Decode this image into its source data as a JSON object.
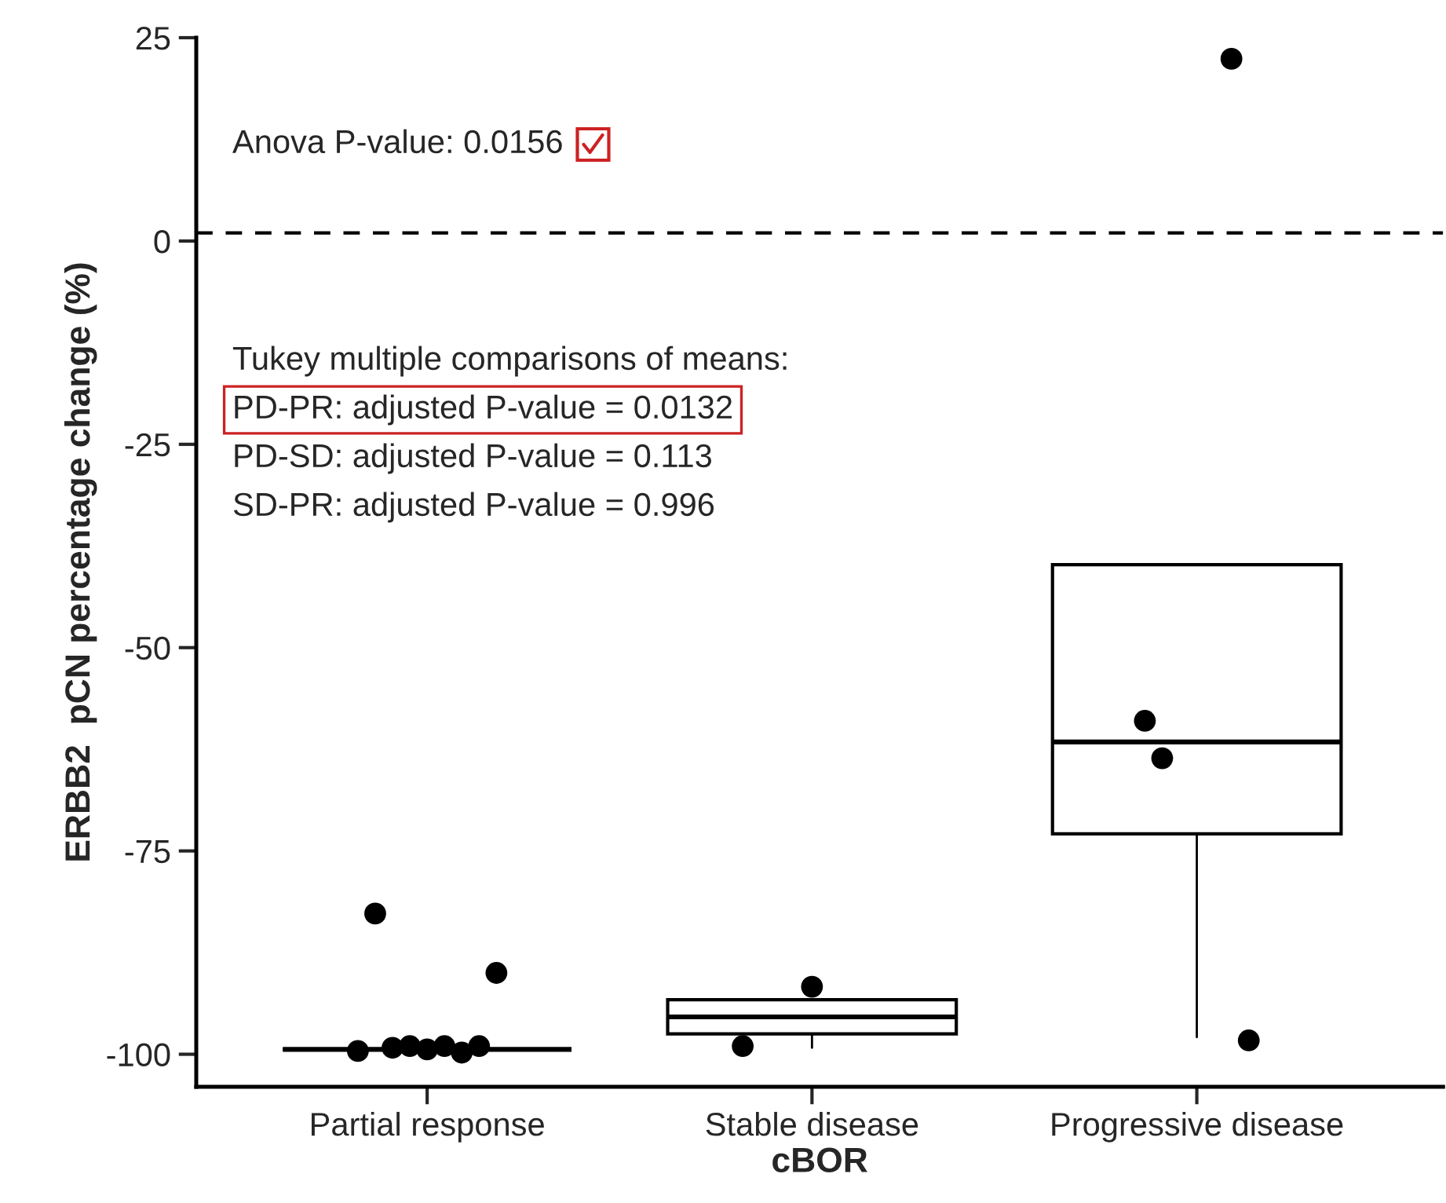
{
  "chart_data": {
    "type": "box",
    "categories": [
      "Partial response",
      "Stable disease",
      "Progressive disease"
    ],
    "color": "#000000",
    "boxes": [
      {
        "q1": -99.4,
        "median": -99.4,
        "q3": -99.4
      },
      {
        "low": -99.2,
        "q1": -97.5,
        "median": -95.4,
        "q3": -93.3
      },
      {
        "low": -97.9,
        "q1": -72.9,
        "median": -61.6,
        "q3": -39.8
      }
    ],
    "series": [
      {
        "type": "scatter",
        "color": "#000000",
        "values": [
          -99.6,
          -99.0,
          null
        ]
      },
      {
        "type": "scatter",
        "color": "#000000",
        "values": [
          -82.7,
          null,
          -59
        ]
      },
      {
        "type": "scatter",
        "color": "#000000",
        "values": [
          -99.2,
          null,
          -63.6
        ]
      },
      {
        "type": "scatter",
        "color": "#000000",
        "values": [
          -99.0,
          null,
          null
        ]
      },
      {
        "type": "scatter",
        "color": "#000000",
        "values": [
          -99.4,
          -91.7,
          null
        ]
      },
      {
        "type": "scatter",
        "color": "#000000",
        "values": [
          -99.0,
          null,
          null
        ]
      },
      {
        "type": "scatter",
        "color": "#000000",
        "values": [
          -99.8,
          null,
          22.4
        ]
      },
      {
        "type": "scatter",
        "color": "#000000",
        "values": [
          -99.0,
          null,
          -98.3
        ]
      },
      {
        "type": "scatter",
        "color": "#000000",
        "values": [
          -90,
          null,
          null
        ]
      }
    ],
    "ylim": [
      -104,
      25
    ],
    "yticks": [
      -100,
      -75,
      -50,
      -25,
      0,
      25
    ],
    "xlabel": "cBOR",
    "ylabel": "ERBB2  pCN percentage change (%)",
    "ref_lines": [
      {
        "axis": "y",
        "value": 1,
        "line_style": "dashed",
        "color": "#000000"
      }
    ],
    "annotations": [
      "Anova P-value: 0.0156",
      "Tukey multiple comparisons of means:",
      "PD-PR: adjusted P-value = 0.0132",
      "PD-SD: adjusted P-value = 0.113",
      "SD-PR: adjusted P-value = 0.996"
    ],
    "marker": "circle"
  }
}
